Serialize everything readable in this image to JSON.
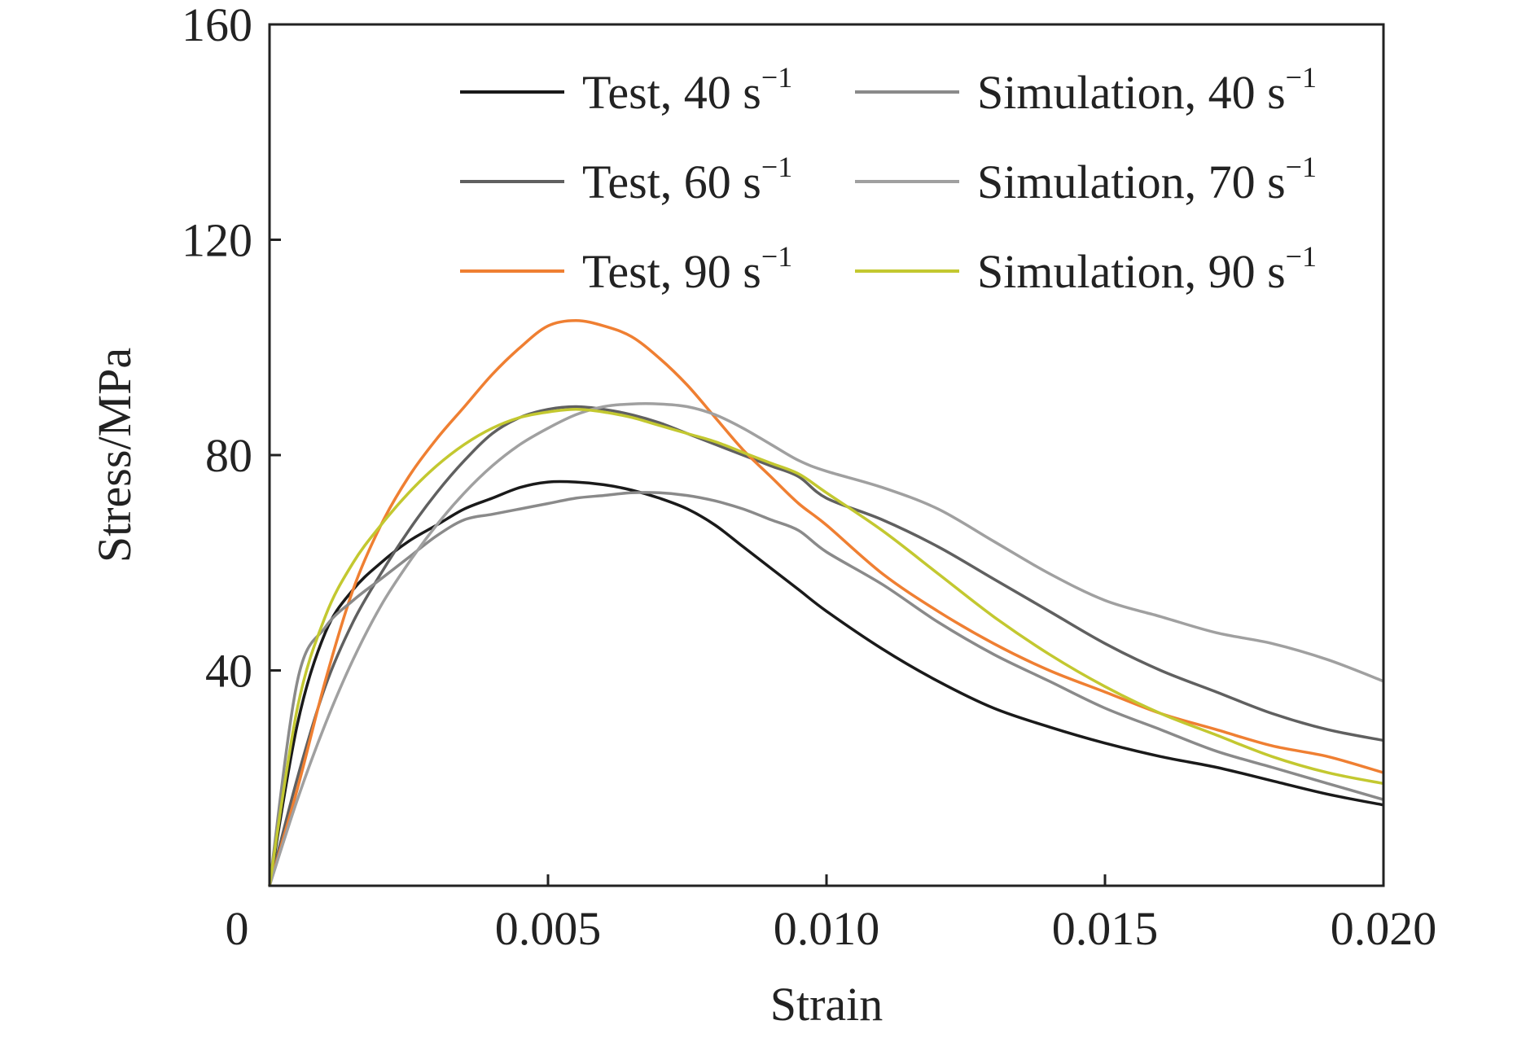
{
  "chart_data": {
    "type": "line",
    "xlabel": "Strain",
    "ylabel": "Stress/MPa",
    "xlim": [
      0,
      0.02
    ],
    "ylim": [
      0,
      160
    ],
    "x_ticks": [
      0,
      0.005,
      0.01,
      0.015,
      0.02
    ],
    "x_tick_labels": [
      "0",
      "0.005",
      "0.010",
      "0.015",
      "0.020"
    ],
    "y_ticks": [
      40,
      80,
      120,
      160
    ],
    "y_tick_labels": [
      "40",
      "80",
      "120",
      "160"
    ],
    "grid": false,
    "legend_placement": "top-right",
    "series": [
      {
        "name": "Test, 40 s",
        "sup": "−1",
        "color": "#1a1a1a",
        "x": [
          0,
          0.0005,
          0.001,
          0.0015,
          0.002,
          0.0025,
          0.003,
          0.0035,
          0.004,
          0.0045,
          0.005,
          0.0055,
          0.006,
          0.0065,
          0.007,
          0.0075,
          0.008,
          0.0085,
          0.009,
          0.0095,
          0.01,
          0.011,
          0.012,
          0.013,
          0.014,
          0.015,
          0.016,
          0.017,
          0.018,
          0.019,
          0.02
        ],
        "y": [
          0,
          30,
          47,
          55,
          60,
          64,
          67,
          70,
          72,
          74,
          75,
          75,
          74.5,
          73.5,
          72,
          70,
          67,
          63,
          59,
          55,
          51,
          44,
          38,
          33,
          29.5,
          26.5,
          24,
          22,
          19.5,
          17,
          15
        ]
      },
      {
        "name": "Test, 60 s",
        "sup": "−1",
        "color": "#606060",
        "x": [
          0,
          0.0005,
          0.001,
          0.0015,
          0.002,
          0.0025,
          0.003,
          0.0035,
          0.004,
          0.0045,
          0.005,
          0.0055,
          0.006,
          0.0065,
          0.007,
          0.0075,
          0.008,
          0.0085,
          0.009,
          0.0095,
          0.01,
          0.011,
          0.012,
          0.013,
          0.014,
          0.015,
          0.016,
          0.017,
          0.018,
          0.019,
          0.02
        ],
        "y": [
          0,
          20,
          37,
          49,
          58,
          66,
          73,
          79,
          84,
          87,
          88.5,
          89,
          88.5,
          87.5,
          86,
          84,
          82,
          80,
          78,
          76,
          72,
          68,
          63,
          57,
          51,
          45,
          40,
          36,
          32,
          29,
          27
        ]
      },
      {
        "name": "Test, 90 s",
        "sup": "−1",
        "color": "#ef7f32",
        "x": [
          0,
          0.0005,
          0.001,
          0.0015,
          0.002,
          0.0025,
          0.003,
          0.0035,
          0.004,
          0.0045,
          0.005,
          0.0055,
          0.006,
          0.0065,
          0.007,
          0.0075,
          0.008,
          0.0085,
          0.009,
          0.0095,
          0.01,
          0.011,
          0.012,
          0.013,
          0.014,
          0.015,
          0.016,
          0.017,
          0.018,
          0.019,
          0.02
        ],
        "y": [
          0,
          18,
          38,
          55,
          67,
          76,
          83,
          89,
          95,
          100,
          104,
          105,
          104,
          102,
          98,
          93,
          87,
          81,
          76,
          71,
          67,
          58,
          51,
          45,
          40,
          36,
          32,
          29,
          26,
          24,
          21
        ]
      },
      {
        "name": "Simulation, 40 s",
        "sup": "−1",
        "color": "#8a8a8a",
        "x": [
          0,
          0.0005,
          0.001,
          0.0015,
          0.002,
          0.0025,
          0.003,
          0.0035,
          0.004,
          0.0045,
          0.005,
          0.0055,
          0.006,
          0.0065,
          0.007,
          0.0075,
          0.008,
          0.0085,
          0.009,
          0.0095,
          0.01,
          0.011,
          0.012,
          0.013,
          0.014,
          0.015,
          0.016,
          0.017,
          0.018,
          0.019,
          0.02
        ],
        "y": [
          0,
          38,
          48,
          53,
          57,
          61,
          65,
          68,
          69,
          70,
          71,
          72,
          72.5,
          73,
          73,
          72.5,
          71.5,
          70,
          68,
          66,
          62,
          56,
          49,
          43,
          38,
          33,
          29,
          25,
          22,
          19,
          16
        ]
      },
      {
        "name": "Simulation, 70 s",
        "sup": "−1",
        "color": "#a0a0a0",
        "x": [
          0,
          0.0005,
          0.001,
          0.0015,
          0.002,
          0.0025,
          0.003,
          0.0035,
          0.004,
          0.0045,
          0.005,
          0.0055,
          0.006,
          0.0065,
          0.007,
          0.0075,
          0.008,
          0.0085,
          0.009,
          0.0095,
          0.01,
          0.011,
          0.012,
          0.013,
          0.014,
          0.015,
          0.016,
          0.017,
          0.018,
          0.019,
          0.02
        ],
        "y": [
          0,
          16,
          30,
          42,
          52,
          60,
          67,
          73,
          78,
          82,
          85,
          87.5,
          89,
          89.5,
          89.5,
          89,
          87.5,
          85,
          82,
          79,
          77,
          74,
          70,
          64,
          58,
          53,
          50,
          47,
          45,
          42,
          38
        ]
      },
      {
        "name": "Simulation, 90 s",
        "sup": "−1",
        "color": "#c3c830",
        "x": [
          0,
          0.0005,
          0.001,
          0.0015,
          0.002,
          0.0025,
          0.003,
          0.0035,
          0.004,
          0.0045,
          0.005,
          0.0055,
          0.006,
          0.0065,
          0.007,
          0.0075,
          0.008,
          0.0085,
          0.009,
          0.0095,
          0.01,
          0.011,
          0.012,
          0.013,
          0.014,
          0.015,
          0.016,
          0.017,
          0.018,
          0.019,
          0.02
        ],
        "y": [
          0,
          33,
          50,
          60,
          67,
          73,
          78,
          82,
          85,
          87,
          88,
          88.5,
          88,
          87,
          85.5,
          84,
          82.5,
          80.5,
          78.5,
          76.5,
          73,
          66,
          58,
          50,
          43,
          37,
          32,
          28,
          24,
          21,
          19
        ]
      }
    ]
  }
}
